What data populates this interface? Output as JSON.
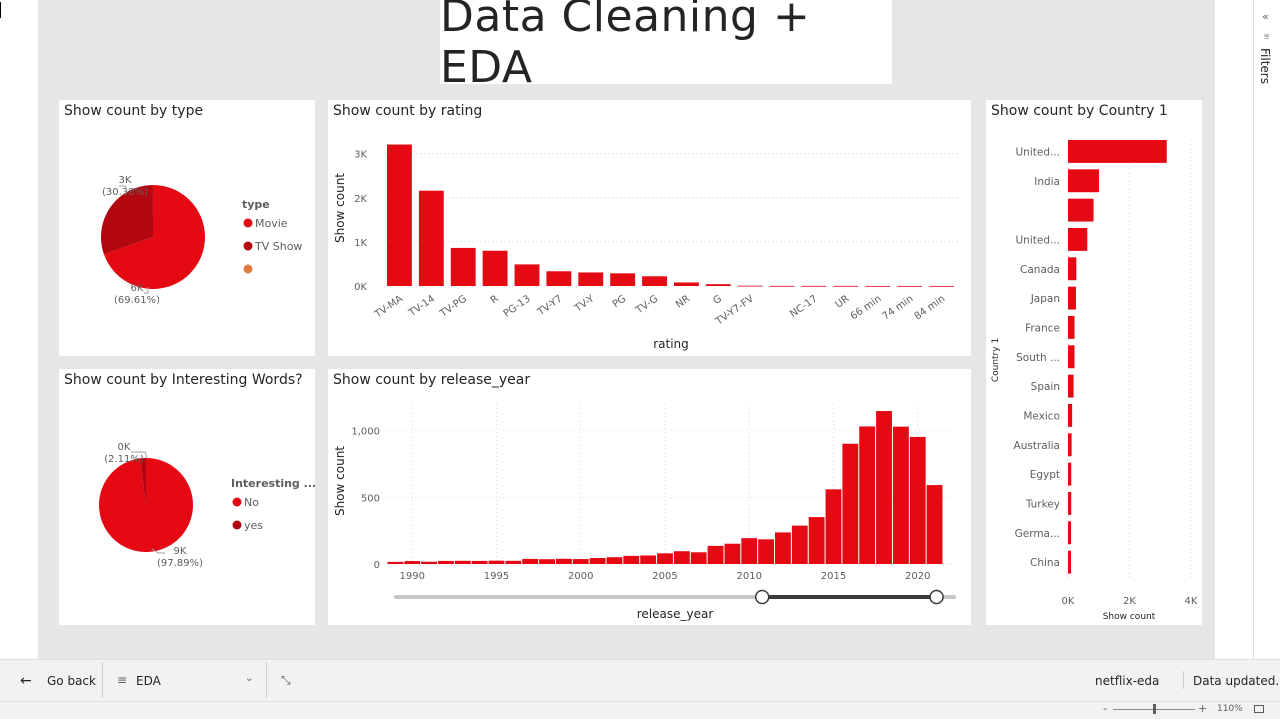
{
  "page": {
    "title": "Data Cleaning + EDA"
  },
  "filters_pane": {
    "label": "Filters",
    "collapse_icon": "double-chevron-left-icon",
    "filter_icon": "filter-icon"
  },
  "bottom_bar": {
    "go_back_label": "Go back",
    "page_selector_value": "EDA",
    "report_name": "netflix-eda",
    "data_updated": "Data updated...",
    "zoom_level": "110%"
  },
  "colors": {
    "red": "#e50914",
    "dark_red": "#b20710",
    "orange": "#e07a3c",
    "canvas": "#e6e6e6"
  },
  "chart_data": [
    {
      "id": "type_pie",
      "type": "pie",
      "title": "Show count by type",
      "legend_title": "type",
      "legend": [
        "Movie",
        "TV Show",
        ""
      ],
      "slices": [
        {
          "label": "Movie",
          "value_label": "6K",
          "pct_label": "(69.61%)",
          "pct": 69.61,
          "color": "#e50914"
        },
        {
          "label": "TV Show",
          "value_label": "3K",
          "pct_label": "(30.38%)",
          "pct": 30.38,
          "color": "#b20710"
        },
        {
          "label": "",
          "value_label": "",
          "pct_label": "",
          "pct": 0.01,
          "color": "#e07a3c"
        }
      ]
    },
    {
      "id": "rating_bar",
      "type": "bar",
      "title": "Show count by rating",
      "xlabel": "rating",
      "ylabel": "Show count",
      "ylim": [
        0,
        3400
      ],
      "yticks": [
        0,
        1000,
        2000,
        3000
      ],
      "ytick_labels": [
        "0K",
        "1K",
        "2K",
        "3K"
      ],
      "categories": [
        "TV-MA",
        "TV-14",
        "TV-PG",
        "R",
        "PG-13",
        "TV-Y7",
        "TV-Y",
        "PG",
        "TV-G",
        "NR",
        "G",
        "TV-Y7-FV",
        "",
        "NC-17",
        "UR",
        "66 min",
        "74 min",
        "84 min"
      ],
      "values": [
        3207,
        2160,
        863,
        799,
        490,
        334,
        307,
        287,
        220,
        80,
        41,
        6,
        3,
        3,
        3,
        1,
        1,
        1
      ]
    },
    {
      "id": "country_bar",
      "type": "bar",
      "orientation": "horizontal",
      "title": "Show count by Country 1",
      "xlabel": "Show count",
      "ylabel": "Country 1",
      "xlim": [
        0,
        4000
      ],
      "xticks": [
        0,
        2000,
        4000
      ],
      "xtick_labels": [
        "0K",
        "2K",
        "4K"
      ],
      "categories": [
        "United...",
        "India",
        "",
        "United...",
        "Canada",
        "Japan",
        "France",
        "South ...",
        "Spain",
        "Mexico",
        "Australia",
        "Egypt",
        "Turkey",
        "Germa...",
        "China"
      ],
      "values": [
        3211,
        1008,
        831,
        628,
        271,
        259,
        213,
        211,
        181,
        134,
        117,
        106,
        105,
        100,
        99
      ]
    },
    {
      "id": "interesting_pie",
      "type": "pie",
      "title": "Show count by Interesting Words?",
      "legend_title": "Interesting ...",
      "legend": [
        "No",
        "yes"
      ],
      "slices": [
        {
          "label": "No",
          "value_label": "9K",
          "pct_label": "(97.89%)",
          "pct": 97.89,
          "color": "#e50914"
        },
        {
          "label": "yes",
          "value_label": "0K",
          "pct_label": "(2.11%)",
          "pct": 2.11,
          "color": "#b20710"
        }
      ]
    },
    {
      "id": "year_bar",
      "type": "bar",
      "title": "Show count by release_year",
      "xlabel": "release_year",
      "ylabel": "Show count",
      "ylim": [
        0,
        1200
      ],
      "yticks": [
        0,
        500,
        1000
      ],
      "ytick_labels": [
        "0",
        "500",
        "1,000"
      ],
      "xticks": [
        1990,
        1995,
        2000,
        2005,
        2010,
        2015,
        2020
      ],
      "x": [
        1989,
        1990,
        1991,
        1992,
        1993,
        1994,
        1995,
        1996,
        1997,
        1998,
        1999,
        2000,
        2001,
        2002,
        2003,
        2004,
        2005,
        2006,
        2007,
        2008,
        2009,
        2010,
        2011,
        2012,
        2013,
        2014,
        2015,
        2016,
        2017,
        2018,
        2019,
        2020,
        2021
      ],
      "values": [
        16,
        22,
        17,
        23,
        24,
        23,
        25,
        24,
        38,
        36,
        39,
        37,
        45,
        51,
        61,
        64,
        80,
        96,
        88,
        136,
        152,
        194,
        185,
        237,
        288,
        352,
        560,
        902,
        1032,
        1147,
        1030,
        953,
        592
      ],
      "slider": {
        "min": 1989,
        "max": 2021,
        "from": 2010,
        "to": 2020
      }
    }
  ]
}
